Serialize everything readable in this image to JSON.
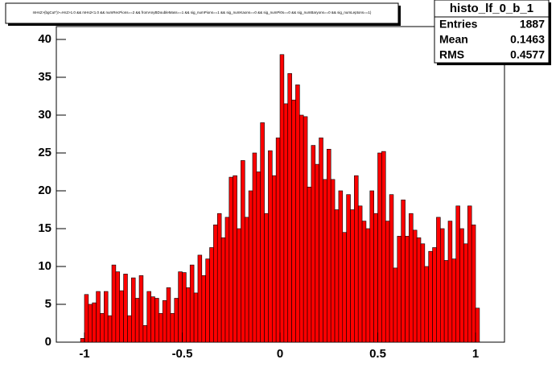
{
  "chart_data": {
    "type": "histogram",
    "title": "mHs2>(bgCut*)>=Hs2>1.0 && mHs2<1.0 && numRecPions==2 && fromAnyBDoubleMass==1 && sig_numPions==1 && sig_numKaons==0 && sig_numPi0s==0 && sig_numBaryons==0 && sig_numLeptons==1)",
    "stats": {
      "name": "histo_lf_0_b_1",
      "labels": [
        "Entries",
        "Mean",
        "RMS"
      ],
      "values": [
        1887,
        0.1463,
        0.4577
      ]
    },
    "color": "#ff0000",
    "bins": [
      -1.02,
      -1.0,
      -0.98,
      -0.96,
      -0.94,
      -0.92,
      -0.9,
      -0.88,
      -0.86,
      -0.84,
      -0.82,
      -0.8,
      -0.78,
      -0.76,
      -0.74,
      -0.72,
      -0.7,
      -0.68,
      -0.66,
      -0.64,
      -0.62,
      -0.6,
      -0.58,
      -0.56,
      -0.54,
      -0.52,
      -0.5,
      -0.48,
      -0.46,
      -0.44,
      -0.42,
      -0.4,
      -0.38,
      -0.36,
      -0.34,
      -0.32,
      -0.3,
      -0.28,
      -0.26,
      -0.24,
      -0.22,
      -0.2,
      -0.18,
      -0.16,
      -0.14,
      -0.12,
      -0.1,
      -0.08,
      -0.06,
      -0.04,
      -0.02,
      0.0,
      0.02,
      0.04,
      0.06,
      0.08,
      0.1,
      0.12,
      0.14,
      0.16,
      0.18,
      0.2,
      0.22,
      0.24,
      0.26,
      0.28,
      0.3,
      0.32,
      0.34,
      0.36,
      0.38,
      0.4,
      0.42,
      0.44,
      0.46,
      0.48,
      0.5,
      0.52,
      0.54,
      0.56,
      0.58,
      0.6,
      0.62,
      0.64,
      0.66,
      0.68,
      0.7,
      0.72,
      0.74,
      0.76,
      0.78,
      0.8,
      0.82,
      0.84,
      0.86,
      0.88,
      0.9,
      0.92,
      0.94,
      0.96,
      0.98,
      1.0,
      1.02
    ],
    "values": [
      0.5,
      6.3,
      5.0,
      5.2,
      6.7,
      3.8,
      6.7,
      3.5,
      10.2,
      9.3,
      6.8,
      9.0,
      3.5,
      8.5,
      5.8,
      8.8,
      2.2,
      6.7,
      6.0,
      5.8,
      3.8,
      5.5,
      7.2,
      3.8,
      5.8,
      9.3,
      9.2,
      7.2,
      10.2,
      6.5,
      11.5,
      8.8,
      11.0,
      12.5,
      15.5,
      17.0,
      13.8,
      16.5,
      21.8,
      22.0,
      15.0,
      24.0,
      16.5,
      20.0,
      25.0,
      22.5,
      29.0,
      17.0,
      25.3,
      22.0,
      27.0,
      38.0,
      31.5,
      35.5,
      32.0,
      34.0,
      30.0,
      29.8,
      20.5,
      26.0,
      23.5,
      27.0,
      21.5,
      25.5,
      21.5,
      17.5,
      20.0,
      14.5,
      19.5,
      17.5,
      22.0,
      18.0,
      16.0,
      15.0,
      20.0,
      17.0,
      25.0,
      25.2,
      16.0,
      19.5,
      9.8,
      14.0,
      18.8,
      14.0,
      17.0,
      14.8,
      13.8,
      13.0,
      10.0,
      12.0,
      12.5,
      16.5,
      15.0,
      10.8,
      16.0,
      11.0,
      18.0,
      15.0,
      13.0,
      18.0,
      15.5,
      4.5
    ],
    "xlim": [
      -1.144,
      1.148
    ],
    "xticks": [
      -1,
      -0.5,
      0,
      0.5,
      1
    ],
    "ylim": [
      0,
      41.7
    ],
    "yticks": [
      0,
      5,
      10,
      15,
      20,
      25,
      30,
      35,
      40
    ]
  }
}
